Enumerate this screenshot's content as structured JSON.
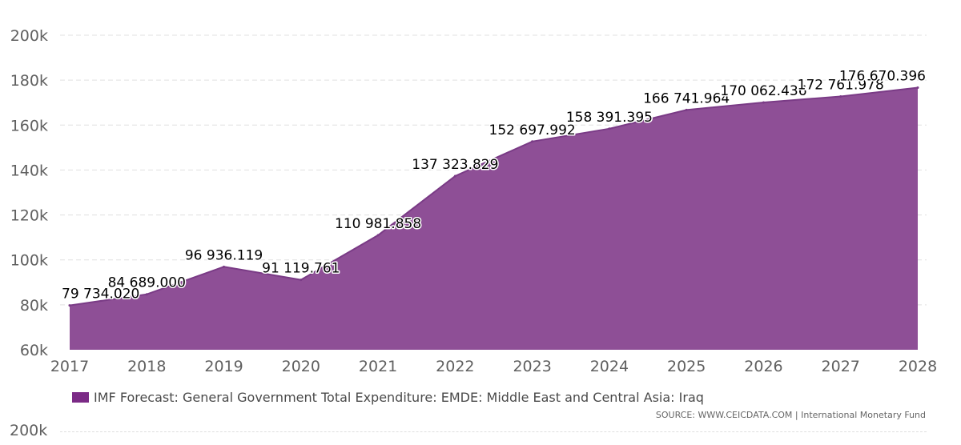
{
  "colors": {
    "area": "#8e4f96",
    "line": "#7a3b86",
    "legend_swatch": "#7b2a86",
    "grid": "#e0e0e0"
  },
  "chart_data": {
    "type": "area",
    "x": [
      "2017",
      "2018",
      "2019",
      "2020",
      "2021",
      "2022",
      "2023",
      "2024",
      "2025",
      "2026",
      "2027",
      "2028"
    ],
    "series": [
      {
        "name": "IMF Forecast: General Government Total Expenditure: EMDE: Middle East and Central Asia: Iraq",
        "values": [
          79734.02,
          84689.0,
          96936.119,
          91119.761,
          110981.858,
          137323.829,
          152697.992,
          158391.395,
          166741.964,
          170062.436,
          172761.978,
          176670.396
        ],
        "labels": [
          "79 734.020",
          "84 689.000",
          "96 936.119",
          "91 119.761",
          "110 981.858",
          "137 323.829",
          "152 697.992",
          "158 391.395",
          "166 741.964",
          "170 062.436",
          "172 761.978",
          "176 670.396"
        ]
      }
    ],
    "ylim": [
      60000,
      200000
    ],
    "yticks": [
      {
        "value": 60000,
        "label": "60k"
      },
      {
        "value": 80000,
        "label": "80k"
      },
      {
        "value": 100000,
        "label": "100k"
      },
      {
        "value": 120000,
        "label": "120k"
      },
      {
        "value": 140000,
        "label": "140k"
      },
      {
        "value": 160000,
        "label": "160k"
      },
      {
        "value": 180000,
        "label": "180k"
      },
      {
        "value": 200000,
        "label": "200k"
      }
    ],
    "grid": true,
    "legend_position": "bottom-left",
    "source": "SOURCE: WWW.CEICDATA.COM | International Monetary Fund"
  },
  "ghost_axis_label": "200k"
}
